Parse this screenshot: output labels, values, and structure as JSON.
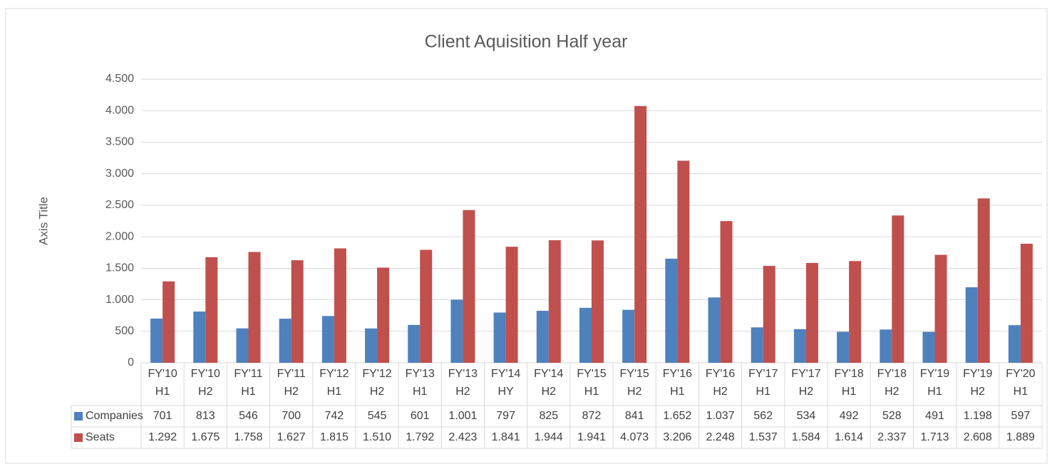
{
  "chart_data": {
    "type": "bar",
    "title": "Client Aquisition Half year",
    "y_axis_label": "Axis Title",
    "categories": [
      [
        "FY'10",
        "H1"
      ],
      [
        "FY'10",
        "H2"
      ],
      [
        "FY'11",
        "H1"
      ],
      [
        "FY'11",
        "H2"
      ],
      [
        "FY'12",
        "H1"
      ],
      [
        "FY'12",
        "H2"
      ],
      [
        "FY'13",
        "H1"
      ],
      [
        "FY'13",
        "H2"
      ],
      [
        "FY'14",
        "HY"
      ],
      [
        "FY'14",
        "H2"
      ],
      [
        "FY'15",
        "H1"
      ],
      [
        "FY'15",
        "H2"
      ],
      [
        "FY'16",
        "H1"
      ],
      [
        "FY'16",
        "H2"
      ],
      [
        "FY'17",
        "H1"
      ],
      [
        "FY'17",
        "H2"
      ],
      [
        "FY'18",
        "H1"
      ],
      [
        "FY'18",
        "H2"
      ],
      [
        "FY'19",
        "H1"
      ],
      [
        "FY'19",
        "H2"
      ],
      [
        "FY'20",
        "H1"
      ]
    ],
    "series": [
      {
        "name": "Companies",
        "color": "#4f81bd",
        "values": [
          701,
          813,
          546,
          700,
          742,
          545,
          601,
          1001,
          797,
          825,
          872,
          841,
          1652,
          1037,
          562,
          534,
          492,
          528,
          491,
          1198,
          597
        ],
        "value_labels": [
          "701",
          "813",
          "546",
          "700",
          "742",
          "545",
          "601",
          "1.001",
          "797",
          "825",
          "872",
          "841",
          "1.652",
          "1.037",
          "562",
          "534",
          "492",
          "528",
          "491",
          "1.198",
          "597"
        ]
      },
      {
        "name": "Seats",
        "color": "#c0504d",
        "values": [
          1292,
          1675,
          1758,
          1627,
          1815,
          1510,
          1792,
          2423,
          1841,
          1944,
          1941,
          4073,
          3206,
          2248,
          1537,
          1584,
          1614,
          2337,
          1713,
          2608,
          1889
        ],
        "value_labels": [
          "1.292",
          "1.675",
          "1.758",
          "1.627",
          "1.815",
          "1.510",
          "1.792",
          "2.423",
          "1.841",
          "1.944",
          "1.941",
          "4.073",
          "3.206",
          "2.248",
          "1.537",
          "1.584",
          "1.614",
          "2.337",
          "1.713",
          "2.608",
          "1.889"
        ]
      }
    ],
    "ylim": [
      0,
      4500
    ],
    "yticks": [
      0,
      500,
      {
        "value": 1000,
        "label": "1.000"
      },
      {
        "value": 1500,
        "label": "1.500"
      },
      {
        "value": 2000,
        "label": "2.000"
      },
      {
        "value": 2500,
        "label": "2.500"
      },
      {
        "value": 3000,
        "label": "3.000"
      },
      {
        "value": 3500,
        "label": "3.500"
      },
      {
        "value": 4000,
        "label": "4.000"
      },
      {
        "value": 4500,
        "label": "4.500"
      }
    ],
    "grid": true
  }
}
